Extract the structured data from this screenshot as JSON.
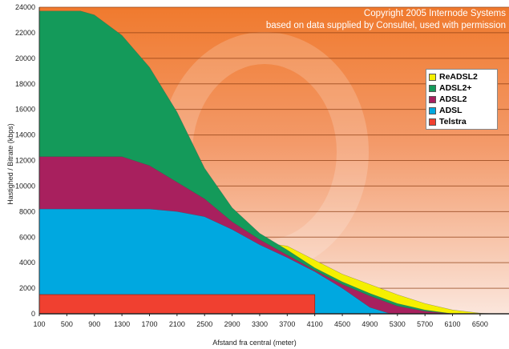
{
  "chart_data": {
    "type": "area",
    "title": "",
    "copyright": [
      "Copyright 2005 Internode Systems",
      "based on data supplied by Consultel, used with permission"
    ],
    "xlabel": "Afstand fra central (meter)",
    "ylabel": "Hastighed / Bitrate (kbps)",
    "xlim": [
      100,
      6920
    ],
    "ylim": [
      0,
      24000
    ],
    "xticks": [
      100,
      500,
      900,
      1300,
      1700,
      2100,
      2500,
      2900,
      3300,
      3700,
      4100,
      4500,
      4900,
      5300,
      5700,
      6100,
      6500
    ],
    "yticks": [
      0,
      2000,
      4000,
      6000,
      8000,
      10000,
      12000,
      14000,
      16000,
      18000,
      20000,
      22000,
      24000
    ],
    "grid": true,
    "legend_position": "top-right",
    "series": [
      {
        "name": "ReADSL2",
        "color": "#f5f000",
        "x": [
          3300,
          3700,
          4100,
          4500,
          4900,
          5300,
          5700,
          6100,
          6500,
          6700
        ],
        "y": [
          5600,
          5300,
          4200,
          3100,
          2300,
          1500,
          800,
          300,
          50,
          0
        ]
      },
      {
        "name": "ADSL2+",
        "color": "#149a5a",
        "x": [
          100,
          500,
          700,
          900,
          1300,
          1700,
          2100,
          2500,
          2900,
          3300,
          3700,
          4100,
          4500,
          4900,
          5300,
          5700,
          6100
        ],
        "y": [
          23700,
          23700,
          23700,
          23400,
          21800,
          19300,
          15800,
          11400,
          8300,
          6300,
          5000,
          3600,
          2500,
          1600,
          800,
          300,
          0
        ]
      },
      {
        "name": "ADSL2",
        "color": "#a8205e",
        "x": [
          100,
          500,
          900,
          1300,
          1700,
          2100,
          2500,
          2900,
          3300,
          3700,
          4100,
          4500,
          4900,
          5300,
          5700,
          6100
        ],
        "y": [
          12300,
          12300,
          12300,
          12300,
          11600,
          10300,
          9000,
          7200,
          5800,
          4600,
          3400,
          2300,
          1400,
          600,
          200,
          0
        ]
      },
      {
        "name": "ADSL",
        "color": "#00a8e0",
        "x": [
          100,
          500,
          900,
          1300,
          1700,
          2100,
          2500,
          2900,
          3300,
          3700,
          4100,
          4500,
          4900,
          5200
        ],
        "y": [
          8200,
          8200,
          8200,
          8200,
          8200,
          8000,
          7600,
          6600,
          5400,
          4400,
          3300,
          2000,
          500,
          0
        ]
      },
      {
        "name": "Telstra",
        "color": "#f04030",
        "x": [
          100,
          4100
        ],
        "y": [
          1500,
          1500
        ]
      }
    ]
  }
}
